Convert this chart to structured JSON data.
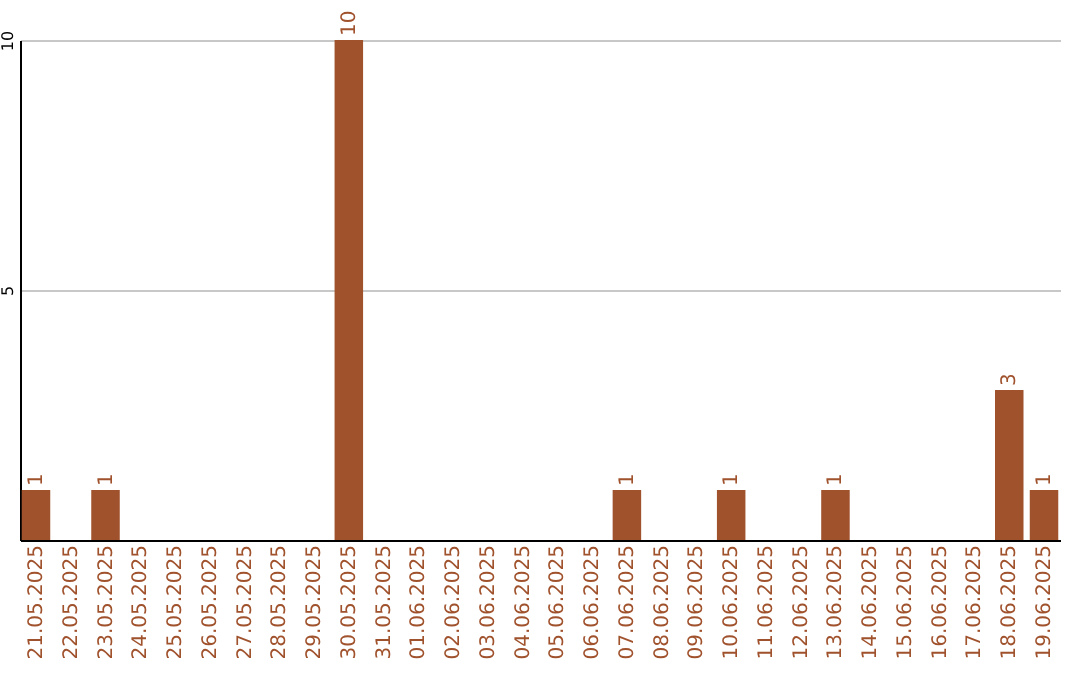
{
  "chart_data": {
    "type": "bar",
    "categories": [
      "21.05.2025",
      "22.05.2025",
      "23.05.2025",
      "24.05.2025",
      "25.05.2025",
      "26.05.2025",
      "27.05.2025",
      "28.05.2025",
      "29.05.2025",
      "30.05.2025",
      "31.05.2025",
      "01.06.2025",
      "02.06.2025",
      "03.06.2025",
      "04.06.2025",
      "05.06.2025",
      "06.06.2025",
      "07.06.2025",
      "08.06.2025",
      "09.06.2025",
      "10.06.2025",
      "11.06.2025",
      "12.06.2025",
      "13.06.2025",
      "14.06.2025",
      "15.06.2025",
      "16.06.2025",
      "17.06.2025",
      "18.06.2025",
      "19.06.2025"
    ],
    "values": [
      1,
      0,
      1,
      0,
      0,
      0,
      0,
      0,
      0,
      10,
      0,
      0,
      0,
      0,
      0,
      0,
      0,
      1,
      0,
      0,
      1,
      0,
      0,
      1,
      0,
      0,
      0,
      0,
      3,
      1
    ],
    "value_labels": [
      "1",
      null,
      "1",
      null,
      null,
      null,
      null,
      null,
      null,
      "10",
      null,
      null,
      null,
      null,
      null,
      null,
      null,
      "1",
      null,
      null,
      "1",
      null,
      null,
      "1",
      null,
      null,
      null,
      null,
      "3",
      "1"
    ],
    "color": "#a0522d",
    "ylim": [
      0,
      10
    ],
    "yticks": [
      5,
      10
    ],
    "grid": "y"
  }
}
